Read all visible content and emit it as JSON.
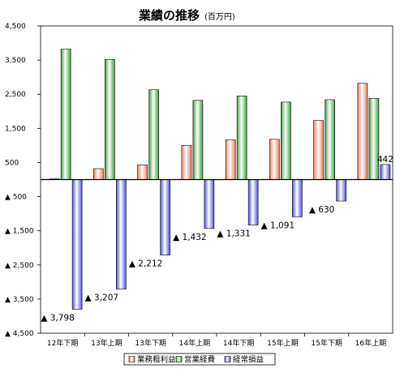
{
  "chart_data": {
    "type": "bar",
    "title": "業績の推移",
    "title_unit": "(百万円)",
    "categories": [
      "12年下期",
      "13年上期",
      "13年下期",
      "14年上期",
      "14年下期",
      "15年上期",
      "15年下期",
      "16年上期"
    ],
    "y_tick_labels": [
      "4,500",
      "3,500",
      "2,500",
      "1,500",
      "500",
      "▲ 500",
      "▲ 1,500",
      "▲ 2,500",
      "▲ 3,500",
      "▲ 4,500"
    ],
    "y_tick_values": [
      4500,
      3500,
      2500,
      1500,
      500,
      -500,
      -1500,
      -2500,
      -3500,
      -4500
    ],
    "ylim": [
      -4500,
      4500
    ],
    "xlabel": "",
    "ylabel": "",
    "legend_position": "bottom",
    "grid": false,
    "series": [
      {
        "name": "業務粗利益",
        "color": "#f08060",
        "values": [
          20,
          320,
          430,
          1000,
          1170,
          1180,
          1730,
          2820
        ],
        "labels": [
          "",
          "",
          "",
          "",
          "",
          "",
          "",
          ""
        ]
      },
      {
        "name": "営業経費",
        "color": "#40a040",
        "values": [
          3820,
          3520,
          2630,
          2320,
          2450,
          2270,
          2340,
          2380
        ],
        "labels": [
          "",
          "",
          "",
          "",
          "",
          "",
          "",
          ""
        ]
      },
      {
        "name": "経常損益",
        "color": "#5050e0",
        "values": [
          -3798,
          -3207,
          -2212,
          -1432,
          -1331,
          -1091,
          -630,
          442
        ],
        "labels": [
          "▲ 3,798",
          "▲ 3,207",
          "▲ 2,212",
          "▲ 1,432",
          "▲ 1,331",
          "▲ 1,091",
          "▲ 630",
          "442"
        ]
      }
    ]
  }
}
